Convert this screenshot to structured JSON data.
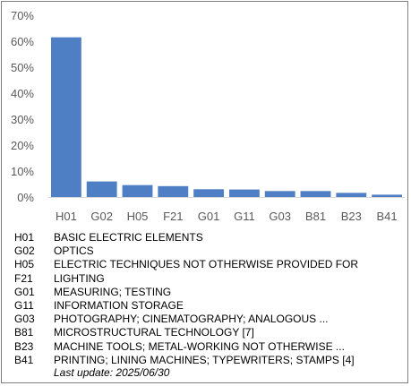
{
  "chart_data": {
    "type": "bar",
    "categories": [
      "H01",
      "G02",
      "H05",
      "F21",
      "G01",
      "G11",
      "G03",
      "B81",
      "B23",
      "B41"
    ],
    "values": [
      61.5,
      6.0,
      4.6,
      4.2,
      3.0,
      2.9,
      2.3,
      2.3,
      1.6,
      0.9
    ],
    "ylim": [
      0,
      70
    ],
    "yticks": [
      "0%",
      "10%",
      "20%",
      "30%",
      "40%",
      "50%",
      "60%",
      "70%"
    ],
    "bar_color": "#4e7ec3",
    "grid": false
  },
  "legend": [
    {
      "code": "H01",
      "desc": "BASIC ELECTRIC ELEMENTS"
    },
    {
      "code": "G02",
      "desc": "OPTICS"
    },
    {
      "code": "H05",
      "desc": "ELECTRIC TECHNIQUES NOT OTHERWISE PROVIDED FOR"
    },
    {
      "code": "F21",
      "desc": "LIGHTING"
    },
    {
      "code": "G01",
      "desc": "MEASURING; TESTING"
    },
    {
      "code": "G11",
      "desc": "INFORMATION STORAGE"
    },
    {
      "code": "G03",
      "desc": "PHOTOGRAPHY; CINEMATOGRAPHY; ANALOGOUS ..."
    },
    {
      "code": "B81",
      "desc": "MICROSTRUCTURAL TECHNOLOGY [7]"
    },
    {
      "code": "B23",
      "desc": "MACHINE TOOLS; METAL-WORKING NOT OTHERWISE ..."
    },
    {
      "code": "B41",
      "desc": "PRINTING; LINING MACHINES; TYPEWRITERS; STAMPS [4]"
    }
  ],
  "last_update": "Last update:  2025/06/30"
}
